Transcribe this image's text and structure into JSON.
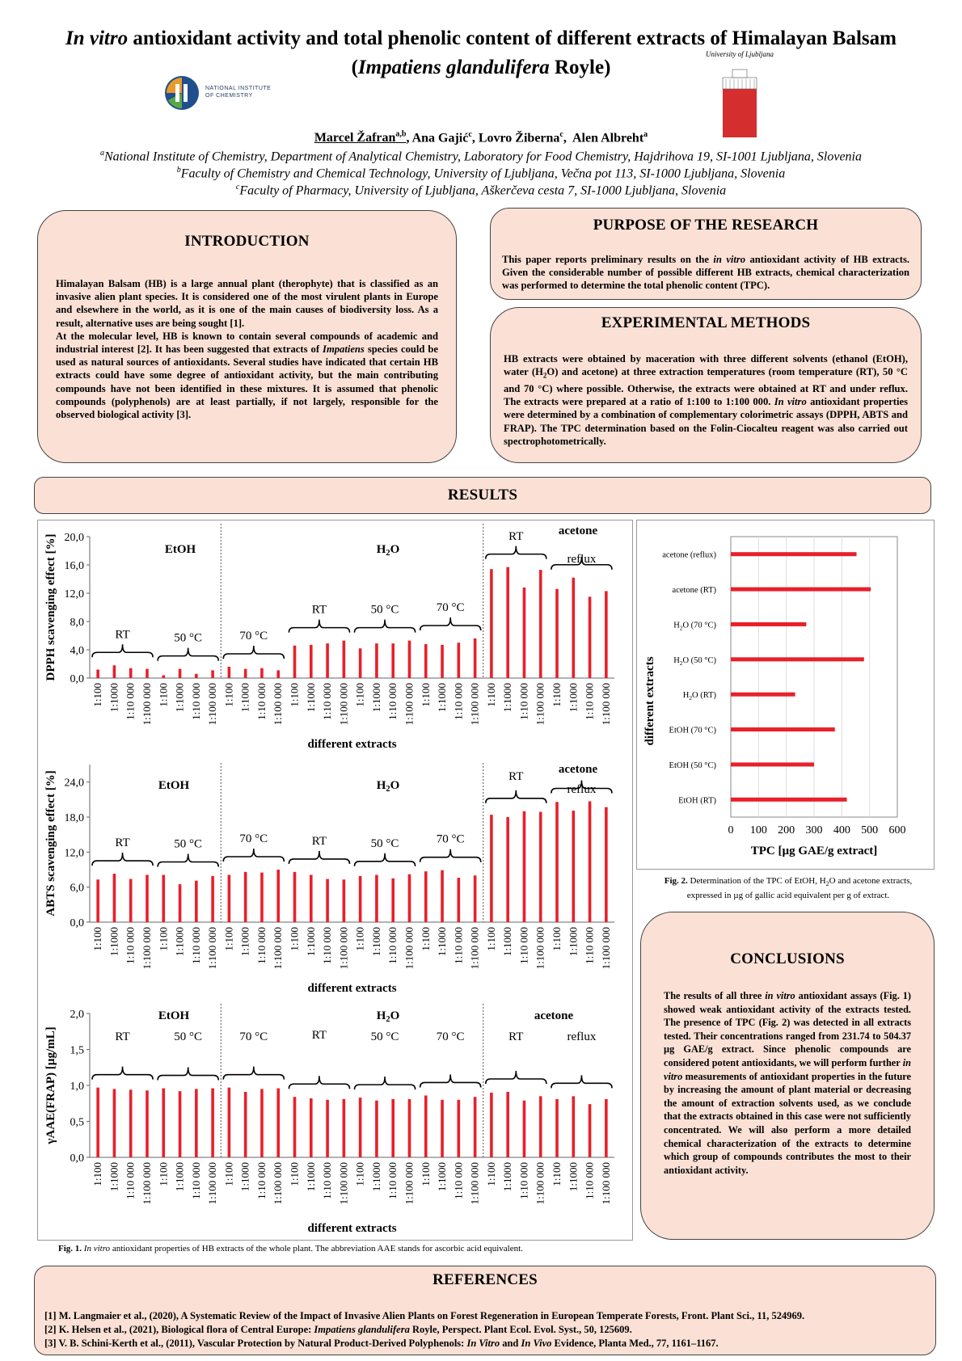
{
  "header": {
    "title_italic_1": "In vitro",
    "title_rest_1": " antioxidant activity and total phenolic content of different extracts of Himalayan Balsam",
    "title_paren_open": "(",
    "title_italic_2": "Impatiens glandulifera",
    "title_rest_2": " Royle)",
    "logo_left_line1": "NATIONAL INSTITUTE",
    "logo_left_line2": "OF CHEMISTRY",
    "logo_right_text": "University of Ljubljana",
    "authors": [
      {
        "name": "Marcel Žafran",
        "sup": "a,b"
      },
      {
        "name": "Ana Gajić",
        "sup": "c"
      },
      {
        "name": "Lovro Žiberna",
        "sup": "c"
      },
      {
        "name": "Alen Albreht",
        "sup": "a"
      }
    ],
    "affiliations": [
      {
        "sup": "a",
        "text": "National Institute of Chemistry, Department of Analytical Chemistry, Laboratory for Food Chemistry, Hajdrihova 19, SI-1001 Ljubljana, Slovenia"
      },
      {
        "sup": "b",
        "text": "Faculty of Chemistry and Chemical Technology, University of Ljubljana, Večna pot 113, SI-1000 Ljubljana, Slovenia"
      },
      {
        "sup": "c",
        "text": "Faculty of Pharmacy, University of Ljubljana, Aškerčeva cesta 7, SI-1000 Ljubljana, Slovenia"
      }
    ]
  },
  "introduction": {
    "title": "INTRODUCTION",
    "p1": "Himalayan Balsam (HB) is a large annual plant (therophyte) that is classified as an invasive alien plant species. It is considered one of the most virulent plants in Europe and elsewhere in the world, as it is one of the main causes of biodiversity loss. As a result, alternative uses are being sought [1].",
    "p2_a": "At the molecular level, HB is known to contain several compounds of academic and industrial interest [2]. It has been suggested that extracts of ",
    "p2_i": "Impatiens",
    "p2_b": " species could be used as natural sources of antioxidants. Several studies have indicated that certain HB extracts could have some degree of antioxidant activity, but the main contributing compounds have not been identified in these mixtures. It is assumed that phenolic compounds (polyphenols) are at least partially, if not largely, responsible for the observed biological activity [3]."
  },
  "purpose": {
    "title": "PURPOSE OF THE RESEARCH",
    "a": "This paper reports preliminary results on the ",
    "i": "in vitro",
    "b": " antioxidant activity of HB extracts. Given the considerable number of possible different HB extracts, chemical characterization was performed to determine the total phenolic content (TPC)."
  },
  "methods": {
    "title": "EXPERIMENTAL METHODS",
    "a": "HB extracts were obtained by maceration with three different solvents (ethanol (EtOH), water (H",
    "sub": "2",
    "b": "O) and acetone) at three extraction temperatures (room temperature (RT), 50 °C and 70 °C) where possible. Otherwise, the extracts were obtained at RT and under reflux. The extracts were prepared at a ratio of 1:100 to 1:100 000. ",
    "i": "In vitro",
    "c": " antioxidant properties were determined by a combination of complementary colorimetric assays (DPPH, ABTS and FRAP). The TPC determination based on the Folin-Ciocalteu reagent was also carried out spectrophotometrically."
  },
  "results": {
    "title": "RESULTS"
  },
  "chart_data": [
    {
      "type": "bar",
      "id": "dpph",
      "ylabel": "DPPH scavenging effect [%]",
      "xlabel": "different extracts",
      "ylim": [
        0,
        20
      ],
      "yticks": [
        "0,0",
        "4,0",
        "8,0",
        "12,0",
        "16,0",
        "20,0"
      ],
      "categories": [
        "1:100",
        "1:1000",
        "1:10 000",
        "1:100 000",
        "1:100",
        "1:1000",
        "1:10 000",
        "1:100 000",
        "1:100",
        "1:1000",
        "1:10 000",
        "1:100 000",
        "1:100",
        "1:1000",
        "1:10 000",
        "1:100 000",
        "1:100",
        "1:1000",
        "1:10 000",
        "1:100 000",
        "1:100",
        "1:1000",
        "1:10 000",
        "1:100 000",
        "1:100",
        "1:1000",
        "1:10 000",
        "1:100 000",
        "1:100",
        "1:1000",
        "1:10 000",
        "1:100 000"
      ],
      "values": [
        1.2,
        1.8,
        1.4,
        1.3,
        0.4,
        1.3,
        0.6,
        1.1,
        1.6,
        1.3,
        1.4,
        1.1,
        4.6,
        4.7,
        4.9,
        5.3,
        4.2,
        4.9,
        4.9,
        5.3,
        4.8,
        4.7,
        5.0,
        5.6,
        15.4,
        15.7,
        12.8,
        15.3,
        12.6,
        14.2,
        11.5,
        12.3
      ],
      "solvents": [
        "EtOH",
        "H2O",
        "acetone"
      ],
      "groups": [
        "RT",
        "50 °C",
        "70 °C",
        "RT",
        "50 °C",
        "70 °C",
        "RT",
        "reflux"
      ]
    },
    {
      "type": "bar",
      "id": "abts",
      "ylabel": "ABTS scavenging effect [%]",
      "xlabel": "different extracts",
      "ylim": [
        0,
        27
      ],
      "yticks": [
        "0,0",
        "6,0",
        "12,0",
        "18,0",
        "24,0"
      ],
      "categories": [
        "1:100",
        "1:1000",
        "1:10 000",
        "1:100 000",
        "1:100",
        "1:1000",
        "1:10 000",
        "1:100 000",
        "1:100",
        "1:1000",
        "1:10 000",
        "1:100 000",
        "1:100",
        "1:1000",
        "1:10 000",
        "1:100 000",
        "1:100",
        "1:1000",
        "1:10 000",
        "1:100 000",
        "1:100",
        "1:1000",
        "1:10 000",
        "1:100 000",
        "1:100",
        "1:1000",
        "1:10 000",
        "1:100 000",
        "1:100",
        "1:1000",
        "1:10 000",
        "1:100 000"
      ],
      "values": [
        7.3,
        8.3,
        7.4,
        8.1,
        8.1,
        6.5,
        7.1,
        7.9,
        8.1,
        8.6,
        8.5,
        9.0,
        8.6,
        8.1,
        7.4,
        7.3,
        7.9,
        8.1,
        7.5,
        8.2,
        8.7,
        8.9,
        7.6,
        8.0,
        18.4,
        18.0,
        19.0,
        18.9,
        20.6,
        19.1,
        20.7,
        19.7
      ],
      "solvents": [
        "EtOH",
        "H2O",
        "acetone"
      ],
      "groups": [
        "RT",
        "50 °C",
        "70 °C",
        "RT",
        "50 °C",
        "70 °C",
        "RT",
        "reflux"
      ]
    },
    {
      "type": "bar",
      "id": "frap",
      "ylabel": "γAAE(FRAP) [µg/mL]",
      "xlabel": "different extracts",
      "ylim": [
        0,
        2
      ],
      "yticks": [
        "0,0",
        "0,5",
        "1,0",
        "1,5",
        "2,0"
      ],
      "categories": [
        "1:100",
        "1:1000",
        "1:10 000",
        "1:100 000",
        "1:100",
        "1:1000",
        "1:10 000",
        "1:100 000",
        "1:100",
        "1:1000",
        "1:10 000",
        "1:100 000",
        "1:100",
        "1:1000",
        "1:10 000",
        "1:100 000",
        "1:100",
        "1:1000",
        "1:10 000",
        "1:100 000",
        "1:100",
        "1:1000",
        "1:10 000",
        "1:100 000",
        "1:100",
        "1:1000",
        "1:10 000",
        "1:100 000",
        "1:100",
        "1:1000",
        "1:10 000",
        "1:100 000"
      ],
      "values": [
        0.97,
        0.95,
        0.94,
        0.93,
        0.96,
        0.92,
        0.95,
        0.96,
        0.97,
        0.91,
        0.95,
        0.96,
        0.84,
        0.82,
        0.8,
        0.81,
        0.83,
        0.79,
        0.81,
        0.81,
        0.86,
        0.8,
        0.8,
        0.84,
        0.9,
        0.91,
        0.79,
        0.85,
        0.81,
        0.85,
        0.74,
        0.81
      ],
      "solvents": [
        "EtOH",
        "H2O",
        "acetone"
      ],
      "groups": [
        "RT",
        "50 °C",
        "70 °C",
        "RT",
        "50 °C",
        "70 °C",
        "RT",
        "reflux"
      ]
    },
    {
      "type": "bar",
      "orientation": "horizontal",
      "id": "tpc",
      "xlabel": "TPC [µg GAE/g extract]",
      "ylabel": "different extracts",
      "xlim": [
        0,
        600
      ],
      "xticks": [
        "0",
        "100",
        "200",
        "300",
        "400",
        "500",
        "600"
      ],
      "categories": [
        "acetone (reflux)",
        "acetone (RT)",
        "H2O (70 °C)",
        "H2O (50 °C)",
        "H2O (RT)",
        "EtOH (70 °C)",
        "EtOH (50 °C)",
        "EtOH (RT)"
      ],
      "values": [
        453,
        504.37,
        272,
        480,
        231.74,
        375,
        300,
        418
      ]
    }
  ],
  "fig1_caption": {
    "label": "Fig. 1.",
    "italic": "In vitro",
    "rest": " antioxidant properties of HB extracts of the whole plant. The abbreviation AAE stands for ascorbic acid equivalent."
  },
  "fig2_caption": {
    "label": "Fig. 2.",
    "rest": " Determination of the TPC of EtOH, H",
    "sub": "2",
    "rest2": "O and acetone extracts, expressed in µg of gallic acid equivalent per g of extract."
  },
  "conclusions": {
    "title": "CONCLUSIONS",
    "a": "The results of all three ",
    "i1": "in vitro",
    "b": " antioxidant assays (Fig. 1) showed weak antioxidant activity of the extracts tested. The presence of TPC (Fig. 2) was detected in all extracts tested. Their concentrations ranged from 231.74 to 504.37 µg GAE/g extract. Since phenolic compounds are considered potent antioxidants, we will perform further ",
    "i2": "in vitro",
    "c": " measurements of antioxidant properties in the future by increasing the amount of plant material or decreasing the amount of extraction solvents used, as we conclude that the extracts obtained in this case were not sufficiently concentrated. We will also perform a more detailed chemical characterization of the extracts to determine which group of compounds contributes the most to their antioxidant activity."
  },
  "references": {
    "title": "REFERENCES",
    "r1": "[1] M. Langmaier et al., (2020), A Systematic Review of the Impact of Invasive Alien Plants on Forest Regeneration in European Temperate Forests, Front. Plant Sci., 11, 524969.",
    "r2_a": "[2] K. Helsen et al., (2021), Biological flora of Central Europe: ",
    "r2_i": "Impatiens glandulifera",
    "r2_b": " Royle, Perspect. Plant Ecol. Evol. Syst., 50, 125609.",
    "r3_a": "[3] V. B. Schini-Kerth et al., (2011), Vascular Protection by Natural Product-Derived Polyphenols: ",
    "r3_i1": "In Vitro",
    "r3_b": " and ",
    "r3_i2": "In Vivo",
    "r3_c": " Evidence, Planta Med., 77, 1161–1167."
  },
  "colors": {
    "box_fill": "#fbe1d5",
    "bar": "#e8202a",
    "logo_red": "#d42e2e"
  }
}
